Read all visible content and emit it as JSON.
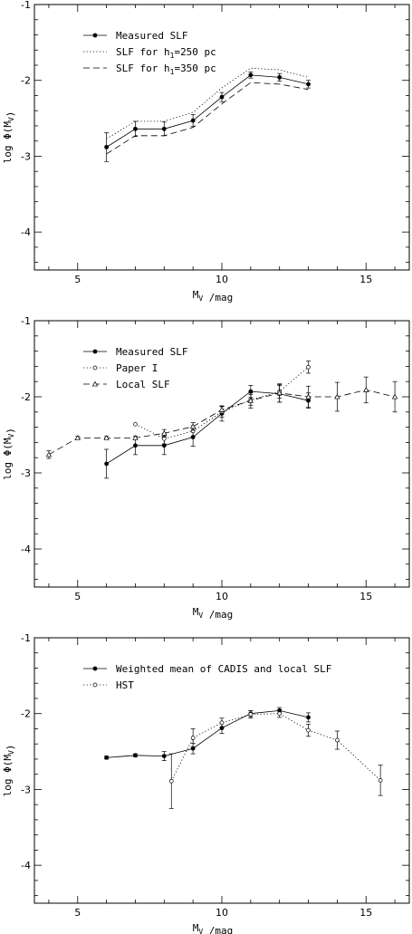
{
  "chart_data": [
    {
      "type": "line",
      "xlabel": "M_V /mag",
      "ylabel": "log Φ(M_V)",
      "xlim": [
        3.5,
        16.5
      ],
      "ylim": [
        -4.5,
        -1
      ],
      "xticks": [
        "5",
        "10",
        "15"
      ],
      "yticks": [
        "-1",
        "-2",
        "-3",
        "-4"
      ],
      "legend_position": "top-left",
      "series": [
        {
          "name": "Measured SLF",
          "style": "solid",
          "marker": "filled-circle",
          "x": [
            6,
            7,
            8,
            9,
            10,
            11,
            12,
            13
          ],
          "y": [
            -2.88,
            -2.64,
            -2.64,
            -2.53,
            -2.22,
            -1.93,
            -1.96,
            -2.05
          ],
          "yerr": [
            0.19,
            0.1,
            0.09,
            0.08,
            0.06,
            0.04,
            0.05,
            0.05
          ]
        },
        {
          "name": "SLF for h1=250 pc",
          "style": "dotted",
          "marker": "none",
          "x": [
            6,
            7,
            8,
            9,
            10,
            11,
            12,
            13
          ],
          "y": [
            -2.77,
            -2.54,
            -2.54,
            -2.42,
            -2.1,
            -1.84,
            -1.86,
            -1.96
          ]
        },
        {
          "name": "SLF for h1=350 pc",
          "style": "dashed",
          "marker": "none",
          "x": [
            6,
            7,
            8,
            9,
            10,
            11,
            12,
            13
          ],
          "y": [
            -2.97,
            -2.73,
            -2.73,
            -2.62,
            -2.31,
            -2.03,
            -2.05,
            -2.12
          ]
        }
      ]
    },
    {
      "type": "line",
      "xlabel": "M_V /mag",
      "ylabel": "log Φ(M_V)",
      "xlim": [
        3.5,
        16.5
      ],
      "ylim": [
        -4.5,
        -1
      ],
      "xticks": [
        "5",
        "10",
        "15"
      ],
      "yticks": [
        "-1",
        "-2",
        "-3",
        "-4"
      ],
      "legend_position": "top-left",
      "series": [
        {
          "name": "Measured SLF",
          "style": "solid",
          "marker": "filled-circle",
          "x": [
            6,
            7,
            8,
            9,
            10,
            11,
            12,
            13
          ],
          "y": [
            -2.88,
            -2.64,
            -2.64,
            -2.53,
            -2.22,
            -1.93,
            -1.96,
            -2.05
          ],
          "yerr": [
            0.19,
            0.12,
            0.12,
            0.12,
            0.1,
            0.08,
            0.11,
            0.1
          ]
        },
        {
          "name": "Paper I",
          "style": "dotted",
          "marker": "open-circle",
          "x": [
            7,
            8,
            9,
            10,
            11,
            12,
            13
          ],
          "y": [
            -2.36,
            -2.55,
            -2.45,
            -2.2,
            -2.04,
            -1.93,
            -1.61
          ],
          "yerr": [
            0,
            0.07,
            0.07,
            0.07,
            0.07,
            0.09,
            0.08
          ]
        },
        {
          "name": "Local SLF",
          "style": "dashed",
          "marker": "open-triangle",
          "x": [
            4,
            5,
            6,
            7,
            8,
            9,
            10,
            11,
            12,
            13,
            14,
            15,
            16
          ],
          "y": [
            -2.76,
            -2.54,
            -2.54,
            -2.54,
            -2.48,
            -2.39,
            -2.17,
            -2.05,
            -1.95,
            -2.0,
            -2.0,
            -1.91,
            -2.0
          ],
          "yerr": [
            0.05,
            0.02,
            0.02,
            0.02,
            0.05,
            0.05,
            0.05,
            0.1,
            0.12,
            0.14,
            0.19,
            0.17,
            0.2
          ]
        }
      ]
    },
    {
      "type": "line",
      "xlabel": "M_V /mag",
      "ylabel": "log Φ(M_V)",
      "xlim": [
        3.5,
        16.5
      ],
      "ylim": [
        -4.5,
        -1
      ],
      "xticks": [
        "5",
        "10",
        "15"
      ],
      "yticks": [
        "-1",
        "-2",
        "-3",
        "-4"
      ],
      "legend_position": "top-left",
      "series": [
        {
          "name": "Weighted mean of CADIS and local SLF",
          "style": "solid",
          "marker": "filled-circle",
          "x": [
            6,
            7,
            8,
            9,
            10,
            11,
            12,
            13
          ],
          "y": [
            -2.58,
            -2.55,
            -2.56,
            -2.46,
            -2.19,
            -2.0,
            -1.96,
            -2.05
          ],
          "yerr": [
            0.02,
            0.02,
            0.06,
            0.07,
            0.07,
            0.04,
            0.04,
            0.06
          ]
        },
        {
          "name": "HST",
          "style": "dotted",
          "marker": "open-circle",
          "x": [
            8.25,
            9,
            10,
            11,
            12,
            13,
            14,
            15.5
          ],
          "y": [
            -2.89,
            -2.32,
            -2.12,
            -2.01,
            -2.0,
            -2.22,
            -2.35,
            -2.88
          ],
          "yerr": [
            0.36,
            0.12,
            0.06,
            0.05,
            0.05,
            0.08,
            0.12,
            0.2
          ]
        }
      ]
    }
  ]
}
